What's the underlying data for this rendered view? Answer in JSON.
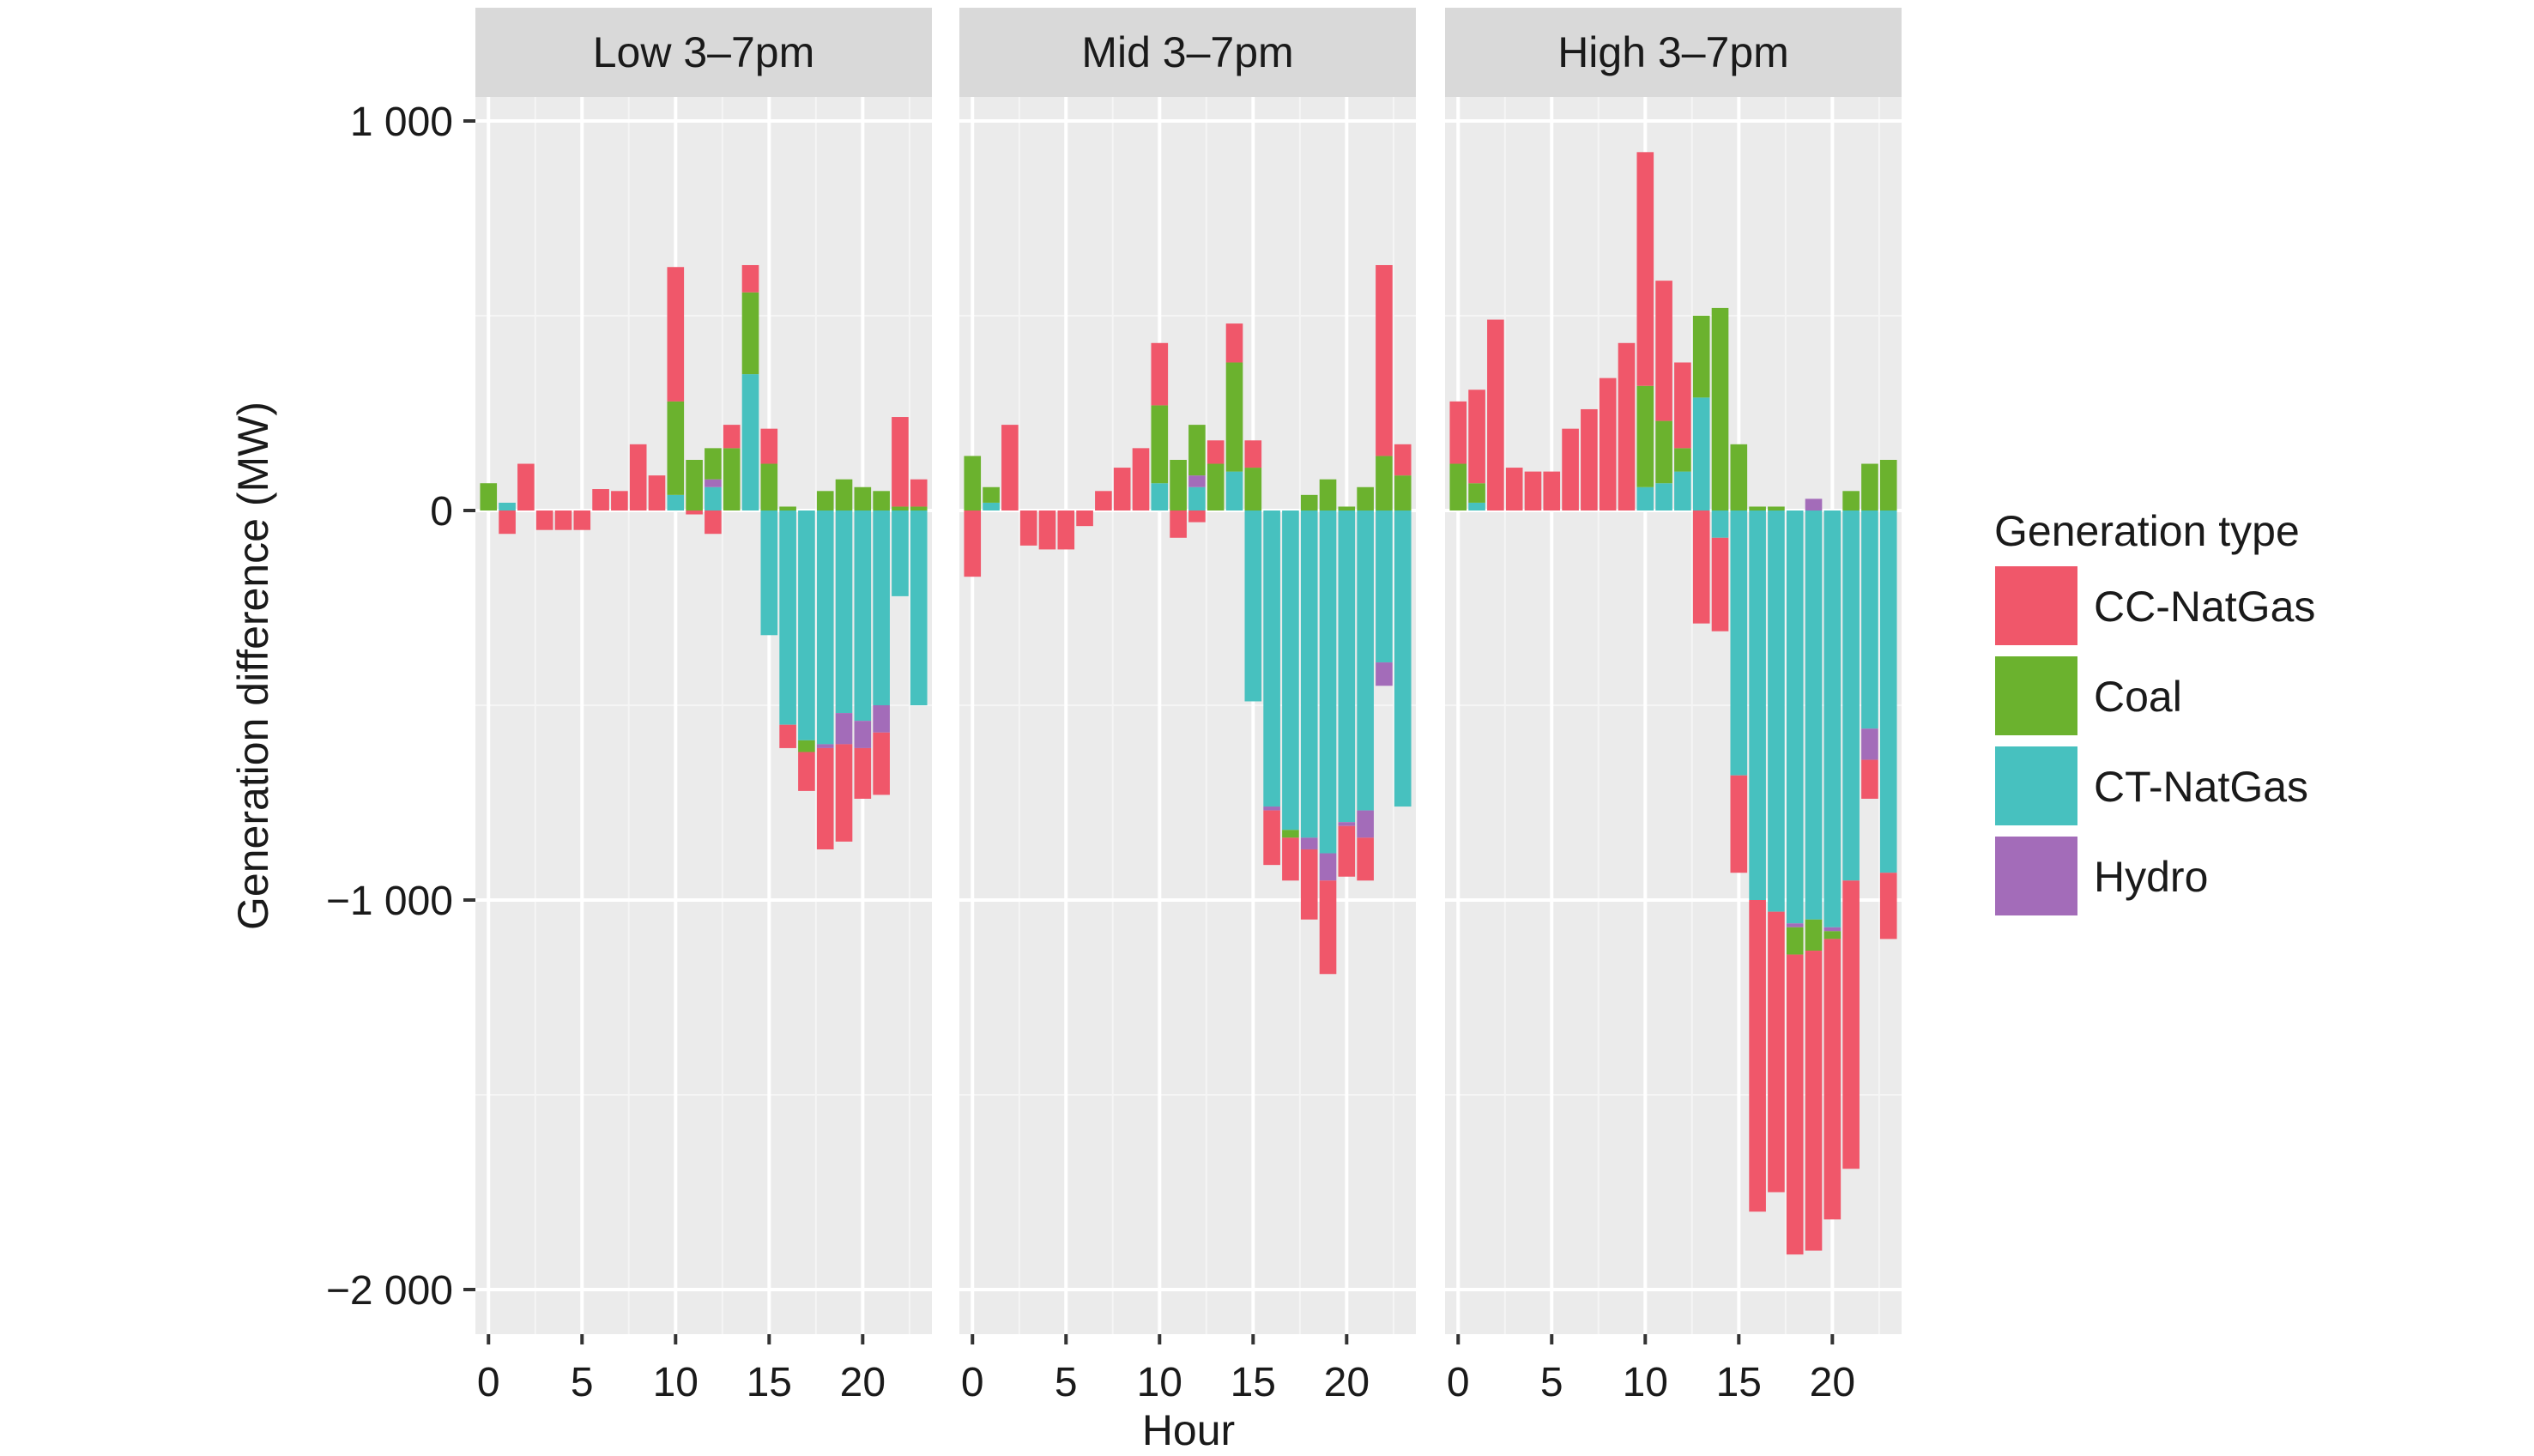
{
  "chart_data": {
    "type": "bar",
    "stacked": true,
    "xlabel": "Hour",
    "ylabel": "Generation difference (MW)",
    "ylim": [
      -2100,
      1200
    ],
    "yticks": [
      1000,
      0,
      -1000,
      -2000
    ],
    "ytick_labels": [
      "1 000",
      "0",
      "−1 000",
      "−2 000"
    ],
    "xlim": [
      -0.7,
      23.7
    ],
    "xticks": [
      0,
      5,
      10,
      15,
      20
    ],
    "xtick_labels": [
      "0",
      "5",
      "10",
      "15",
      "20"
    ],
    "grid": true,
    "legend": {
      "title": "Generation type",
      "placement": "right",
      "entries": [
        {
          "name": "CC-NatGas",
          "color": "#F0576A"
        },
        {
          "name": "Coal",
          "color": "#6BB22E"
        },
        {
          "name": "CT-NatGas",
          "color": "#47C1BF"
        },
        {
          "name": "Hydro",
          "color": "#A36CB9"
        }
      ]
    },
    "series_order": [
      "CT-NatGas",
      "Hydro",
      "Coal",
      "CC-NatGas"
    ],
    "hours": [
      0,
      1,
      2,
      3,
      4,
      5,
      6,
      7,
      8,
      9,
      10,
      11,
      12,
      13,
      14,
      15,
      16,
      17,
      18,
      19,
      20,
      21,
      22,
      23
    ],
    "panels": [
      {
        "title": "Low 3–7pm",
        "series": {
          "CC-NatGas": [
            0,
            -60,
            120,
            -50,
            -50,
            -50,
            55,
            50,
            170,
            90,
            345,
            -10,
            -60,
            60,
            70,
            90,
            -60,
            -100,
            -260,
            -250,
            -130,
            -160,
            230,
            70
          ],
          "Coal": [
            70,
            0,
            0,
            0,
            0,
            0,
            0,
            0,
            0,
            0,
            240,
            130,
            80,
            160,
            210,
            120,
            10,
            -30,
            50,
            80,
            60,
            50,
            10,
            10
          ],
          "CT-NatGas": [
            0,
            20,
            0,
            0,
            0,
            0,
            0,
            0,
            0,
            0,
            40,
            0,
            60,
            0,
            350,
            -320,
            -550,
            -590,
            -600,
            -520,
            -540,
            -500,
            -220,
            -500
          ],
          "Hydro": [
            0,
            0,
            0,
            0,
            0,
            0,
            0,
            0,
            0,
            0,
            0,
            0,
            20,
            0,
            0,
            0,
            0,
            0,
            -10,
            -80,
            -70,
            -70,
            0,
            0
          ]
        }
      },
      {
        "title": "Mid 3–7pm",
        "series": {
          "CC-NatGas": [
            -170,
            0,
            220,
            -90,
            -100,
            -100,
            -40,
            50,
            110,
            160,
            160,
            -70,
            -30,
            60,
            100,
            70,
            -140,
            -110,
            -180,
            -240,
            -130,
            -110,
            490,
            80
          ],
          "Coal": [
            140,
            40,
            0,
            0,
            0,
            0,
            0,
            0,
            0,
            0,
            200,
            130,
            130,
            120,
            280,
            110,
            0,
            -20,
            40,
            80,
            10,
            60,
            140,
            90
          ],
          "CT-NatGas": [
            0,
            20,
            0,
            0,
            0,
            0,
            0,
            0,
            0,
            0,
            70,
            0,
            60,
            0,
            100,
            -490,
            -760,
            -820,
            -840,
            -880,
            -800,
            -770,
            -390,
            -760
          ],
          "Hydro": [
            0,
            0,
            0,
            0,
            0,
            0,
            0,
            0,
            0,
            0,
            0,
            0,
            30,
            0,
            0,
            0,
            -10,
            0,
            -30,
            -70,
            -10,
            -70,
            -60,
            0
          ]
        }
      },
      {
        "title": "High 3–7pm",
        "series": {
          "CC-NatGas": [
            160,
            240,
            490,
            110,
            100,
            100,
            210,
            260,
            340,
            430,
            600,
            360,
            220,
            -290,
            -240,
            -250,
            -800,
            -720,
            -770,
            -770,
            -720,
            -740,
            -100,
            -170
          ],
          "Coal": [
            120,
            50,
            0,
            0,
            0,
            0,
            0,
            0,
            0,
            0,
            260,
            160,
            60,
            210,
            520,
            170,
            10,
            10,
            -70,
            -80,
            -20,
            50,
            120,
            130
          ],
          "CT-NatGas": [
            0,
            20,
            0,
            0,
            0,
            0,
            0,
            0,
            0,
            0,
            60,
            70,
            100,
            290,
            -70,
            -680,
            -1000,
            -1030,
            -1060,
            -1050,
            -1070,
            -950,
            -560,
            -930
          ],
          "Hydro": [
            0,
            0,
            0,
            0,
            0,
            0,
            0,
            0,
            0,
            0,
            0,
            0,
            0,
            0,
            0,
            0,
            0,
            0,
            -10,
            30,
            -10,
            0,
            -80,
            0
          ]
        }
      }
    ]
  }
}
